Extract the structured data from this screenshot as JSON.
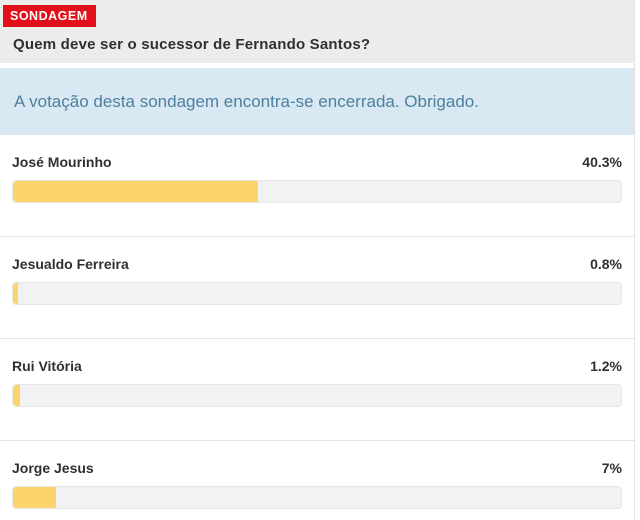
{
  "poll": {
    "badge": "SONDAGEM",
    "question": "Quem deve ser o sucessor de Fernando Santos?",
    "notice": "A votação desta sondagem encontra-se encerrada. Obrigado.",
    "options": [
      {
        "name": "José Mourinho",
        "percent_label": "40.3%",
        "percent": 40.3
      },
      {
        "name": "Jesualdo Ferreira",
        "percent_label": "0.8%",
        "percent": 0.8
      },
      {
        "name": "Rui Vitória",
        "percent_label": "1.2%",
        "percent": 1.2
      },
      {
        "name": "Jorge Jesus",
        "percent_label": "7%",
        "percent": 7
      }
    ],
    "colors": {
      "badge_bg": "#e1101b",
      "badge_text": "#ffffff",
      "header_bg": "#ececec",
      "notice_bg": "#d8e9f3",
      "notice_text": "#4e7f9e",
      "text": "#303030",
      "bar_fill": "#fcd46c",
      "bar_track": "#f2f2f2",
      "bar_track_border": "#e6e6e6",
      "separator": "#e3e3e3",
      "widget_border": "#e2e2e2",
      "bottom_strip": "#eaeaea"
    }
  }
}
